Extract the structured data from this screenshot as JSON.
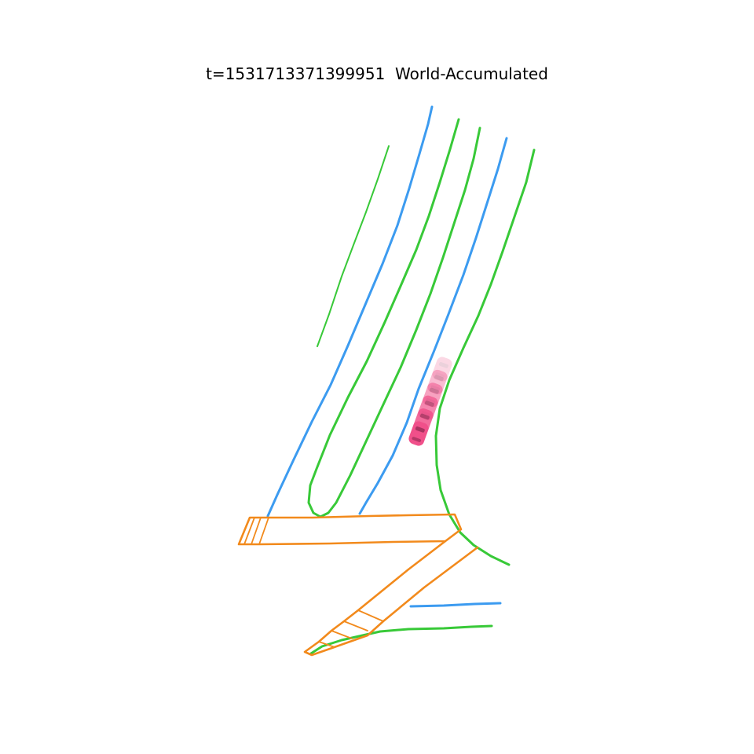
{
  "title": "t=1531713371399951  World-Accumulated",
  "colors": {
    "background": "#ffffff",
    "divider": "#3c9bf0",
    "boundary": "#38c938",
    "ped_crossing": "#f28a1c",
    "ego_vehicle": "#f0508a"
  },
  "ego_trail": {
    "frames": 6
  }
}
